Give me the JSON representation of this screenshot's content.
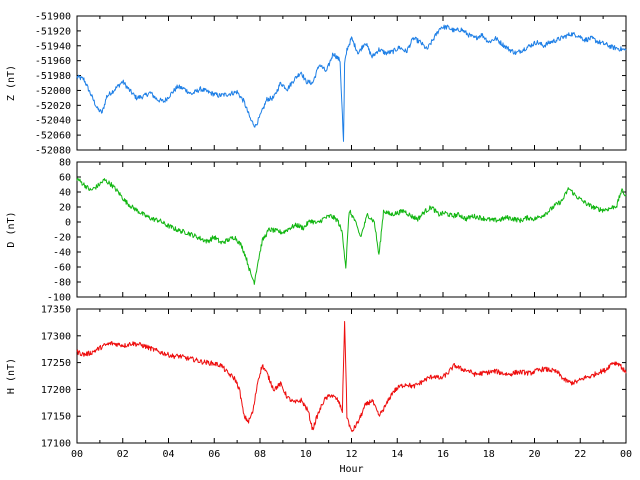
{
  "chart_data": [
    {
      "type": "line",
      "ylabel": "Z (nT)",
      "ylim": [
        -52080,
        -51900
      ],
      "yticks": [
        -51900,
        -51920,
        -51940,
        -51960,
        -51980,
        -52000,
        -52020,
        -52040,
        -52060,
        -52080
      ],
      "color": "#1e7fe6",
      "series": [
        {
          "x": [
            0,
            0.3,
            0.6,
            0.9,
            1.1,
            1.3,
            1.6,
            2.0,
            2.3,
            2.6,
            2.9,
            3.2,
            3.5,
            3.8,
            4.1,
            4.4,
            4.7,
            5.0,
            5.4,
            5.8,
            6.2,
            6.6,
            7.0,
            7.3,
            7.6,
            7.8,
            8.0,
            8.3,
            8.6,
            8.9,
            9.2,
            9.5,
            9.8,
            10.0,
            10.3,
            10.6,
            10.9,
            11.2,
            11.5,
            11.65,
            11.7,
            11.8,
            12.0,
            12.3,
            12.6,
            12.9,
            13.2,
            13.5,
            13.8,
            14.1,
            14.4,
            14.7,
            15.0,
            15.3,
            15.6,
            15.9,
            16.2,
            16.5,
            16.8,
            17.1,
            17.4,
            17.7,
            18.0,
            18.3,
            18.6,
            18.9,
            19.2,
            19.5,
            19.8,
            20.1,
            20.4,
            20.7,
            21.0,
            21.3,
            21.6,
            21.9,
            22.2,
            22.5,
            22.8,
            23.1,
            23.4,
            23.7,
            24.0
          ],
          "y": [
            -51982,
            -51985,
            -52005,
            -52025,
            -52030,
            -52008,
            -52000,
            -51988,
            -52000,
            -52010,
            -52008,
            -52003,
            -52012,
            -52015,
            -52005,
            -51995,
            -51998,
            -52005,
            -51998,
            -52003,
            -52007,
            -52005,
            -52002,
            -52015,
            -52040,
            -52048,
            -52035,
            -52012,
            -52010,
            -51990,
            -51998,
            -51985,
            -51975,
            -51988,
            -51990,
            -51965,
            -51975,
            -51950,
            -51960,
            -52070,
            -51965,
            -51945,
            -51930,
            -51950,
            -51935,
            -51955,
            -51945,
            -51950,
            -51948,
            -51942,
            -51948,
            -51930,
            -51935,
            -51945,
            -51930,
            -51915,
            -51915,
            -51920,
            -51918,
            -51925,
            -51930,
            -51925,
            -51935,
            -51930,
            -51938,
            -51945,
            -51950,
            -51945,
            -51940,
            -51935,
            -51940,
            -51935,
            -51932,
            -51928,
            -51924,
            -51926,
            -51932,
            -51930,
            -51935,
            -51938,
            -51942,
            -51944,
            -51946
          ]
        }
      ]
    },
    {
      "type": "line",
      "ylabel": "D (nT)",
      "ylim": [
        -100,
        80
      ],
      "yticks": [
        80,
        60,
        40,
        20,
        0,
        -20,
        -40,
        -60,
        -80,
        -100
      ],
      "color": "#12b612",
      "series": [
        {
          "x": [
            0,
            0.3,
            0.6,
            0.9,
            1.2,
            1.5,
            1.8,
            2.1,
            2.4,
            2.7,
            3.0,
            3.3,
            3.6,
            3.9,
            4.2,
            4.5,
            4.8,
            5.1,
            5.4,
            5.7,
            6.0,
            6.3,
            6.6,
            6.9,
            7.2,
            7.4,
            7.6,
            7.75,
            7.9,
            8.1,
            8.4,
            8.7,
            9.0,
            9.3,
            9.6,
            9.9,
            10.2,
            10.5,
            10.8,
            11.1,
            11.4,
            11.6,
            11.75,
            11.9,
            12.1,
            12.4,
            12.7,
            13.0,
            13.2,
            13.4,
            13.7,
            14.0,
            14.3,
            14.6,
            14.9,
            15.2,
            15.5,
            15.8,
            16.1,
            16.4,
            16.7,
            17.0,
            17.3,
            17.6,
            17.9,
            18.2,
            18.5,
            18.8,
            19.1,
            19.4,
            19.7,
            20.0,
            20.3,
            20.6,
            20.9,
            21.2,
            21.5,
            21.8,
            22.1,
            22.4,
            22.7,
            23.0,
            23.3,
            23.6,
            23.8,
            24.0
          ],
          "y": [
            58,
            50,
            42,
            48,
            56,
            50,
            40,
            28,
            20,
            14,
            8,
            4,
            2,
            -4,
            -8,
            -12,
            -14,
            -18,
            -22,
            -26,
            -20,
            -28,
            -24,
            -20,
            -32,
            -48,
            -70,
            -80,
            -55,
            -25,
            -10,
            -12,
            -14,
            -8,
            -4,
            -8,
            2,
            -2,
            5,
            8,
            2,
            -15,
            -60,
            15,
            5,
            -20,
            10,
            0,
            -45,
            15,
            10,
            12,
            15,
            8,
            4,
            14,
            20,
            10,
            12,
            8,
            10,
            4,
            8,
            6,
            4,
            2,
            3,
            6,
            4,
            2,
            6,
            4,
            8,
            14,
            22,
            28,
            45,
            35,
            28,
            22,
            18,
            16,
            18,
            22,
            42,
            35
          ]
        }
      ]
    },
    {
      "type": "line",
      "xlabel": "Hour",
      "ylabel": "H (nT)",
      "ylim": [
        17100,
        17350
      ],
      "yticks": [
        17350,
        17300,
        17250,
        17200,
        17150,
        17100
      ],
      "xticks": [
        "00",
        "02",
        "04",
        "06",
        "08",
        "10",
        "12",
        "14",
        "16",
        "18",
        "20",
        "22",
        "00"
      ],
      "color": "#ee0e0e",
      "series": [
        {
          "x": [
            0,
            0.3,
            0.6,
            0.9,
            1.2,
            1.5,
            1.8,
            2.1,
            2.4,
            2.7,
            3.0,
            3.3,
            3.6,
            3.9,
            4.2,
            4.5,
            4.8,
            5.1,
            5.4,
            5.7,
            6.0,
            6.3,
            6.6,
            6.9,
            7.1,
            7.3,
            7.5,
            7.7,
            7.9,
            8.1,
            8.3,
            8.6,
            8.9,
            9.2,
            9.5,
            9.8,
            10.1,
            10.3,
            10.5,
            10.8,
            11.1,
            11.4,
            11.6,
            11.7,
            11.8,
            12.0,
            12.3,
            12.6,
            12.9,
            13.2,
            13.5,
            13.8,
            14.1,
            14.4,
            14.7,
            15.0,
            15.3,
            15.6,
            15.9,
            16.2,
            16.5,
            16.8,
            17.1,
            17.4,
            17.7,
            18.0,
            18.3,
            18.6,
            18.9,
            19.2,
            19.5,
            19.8,
            20.1,
            20.4,
            20.7,
            21.0,
            21.3,
            21.6,
            21.9,
            22.2,
            22.5,
            22.8,
            23.1,
            23.4,
            23.7,
            24.0
          ],
          "y": [
            17270,
            17265,
            17268,
            17275,
            17282,
            17286,
            17284,
            17282,
            17286,
            17284,
            17280,
            17275,
            17270,
            17266,
            17262,
            17262,
            17258,
            17256,
            17252,
            17250,
            17248,
            17245,
            17230,
            17220,
            17200,
            17150,
            17140,
            17160,
            17215,
            17245,
            17230,
            17200,
            17210,
            17185,
            17175,
            17180,
            17160,
            17125,
            17150,
            17180,
            17190,
            17180,
            17160,
            17330,
            17150,
            17120,
            17140,
            17170,
            17180,
            17150,
            17170,
            17195,
            17205,
            17210,
            17205,
            17212,
            17220,
            17225,
            17220,
            17230,
            17245,
            17238,
            17235,
            17228,
            17230,
            17232,
            17234,
            17230,
            17228,
            17232,
            17232,
            17230,
            17235,
            17238,
            17236,
            17232,
            17218,
            17212,
            17215,
            17222,
            17225,
            17232,
            17236,
            17250,
            17248,
            17230
          ]
        }
      ]
    }
  ]
}
